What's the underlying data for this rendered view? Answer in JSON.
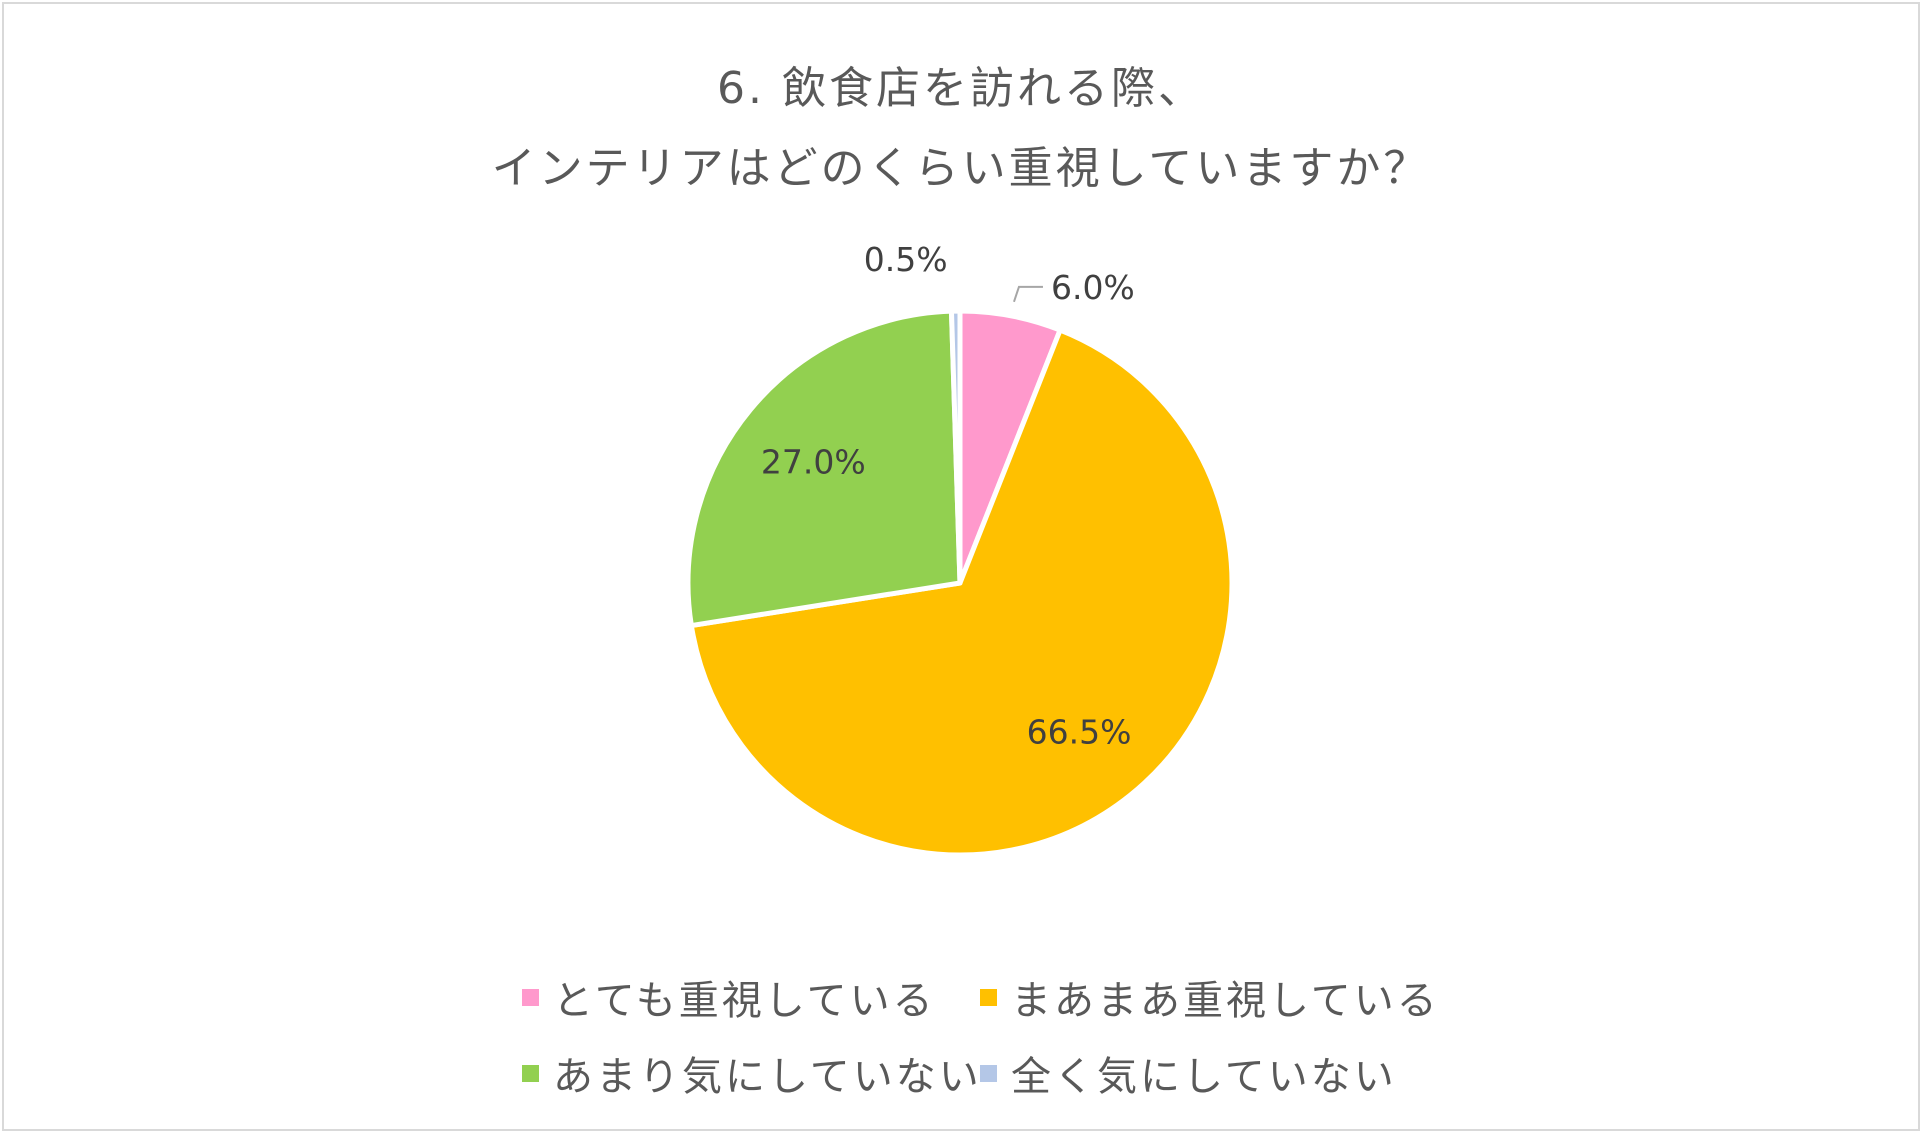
{
  "chart_data": {
    "type": "pie",
    "title_lines": [
      "6. 飲食店を訪れる際、",
      "インテリアはどのくらい重視していますか？"
    ],
    "categories": [
      "とても重視している",
      "まあまあ重視している",
      "あまり気にしていない",
      "全く気にしていない"
    ],
    "values": [
      6.0,
      66.5,
      27.0,
      0.5
    ],
    "labels": [
      "6.0%",
      "66.5%",
      "27.0%",
      "0.5%"
    ],
    "colors": [
      "#ff99cc",
      "#ffc000",
      "#92d050",
      "#b4c7e7"
    ],
    "legend_position": "bottom"
  }
}
